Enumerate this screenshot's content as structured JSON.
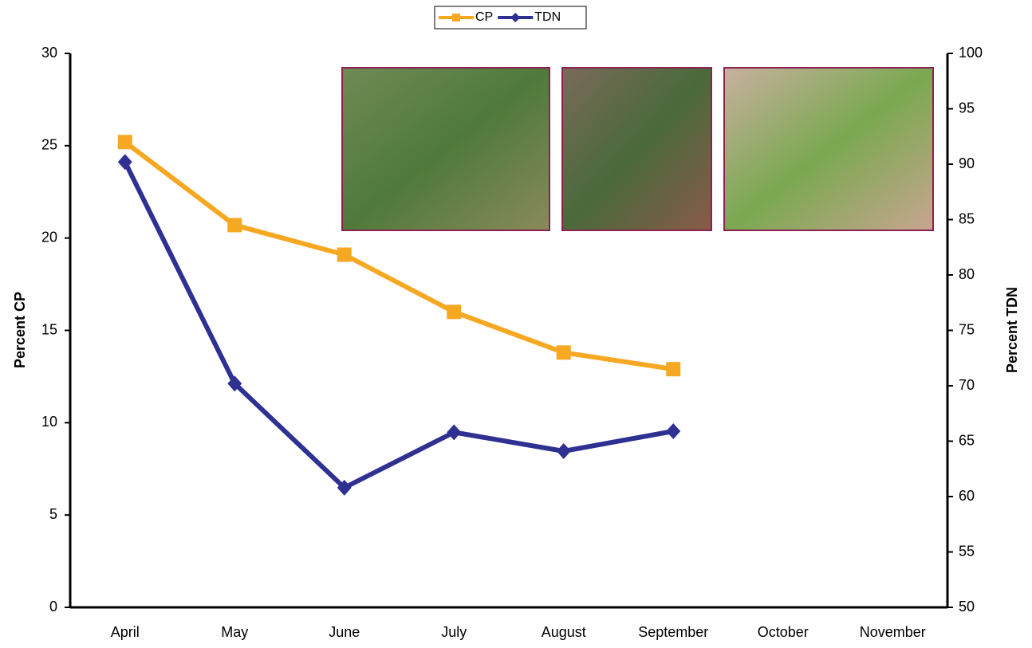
{
  "chart_data": {
    "type": "line",
    "categories": [
      "April",
      "May",
      "June",
      "July",
      "August",
      "September",
      "October",
      "November"
    ],
    "series": [
      {
        "name": "CP",
        "color": "#f7a823",
        "marker": "square",
        "values": [
          25.2,
          20.7,
          19.1,
          16.0,
          13.8,
          12.9,
          null,
          null
        ]
      },
      {
        "name": "TDN",
        "color": "#2e3192",
        "marker": "diamond",
        "axis": "y2",
        "values": [
          90.2,
          70.2,
          60.8,
          65.8,
          64.1,
          65.9,
          null,
          null
        ]
      }
    ],
    "y_label": "Percent CP",
    "y2_label": "Percent TDN",
    "ylim": [
      0,
      30
    ],
    "yticks": [
      0,
      5,
      10,
      15,
      20,
      25,
      30
    ],
    "y2lim": [
      50,
      100
    ],
    "y2ticks": [
      50,
      55,
      60,
      65,
      70,
      75,
      80,
      85,
      90,
      95,
      100
    ],
    "legend": "top"
  }
}
